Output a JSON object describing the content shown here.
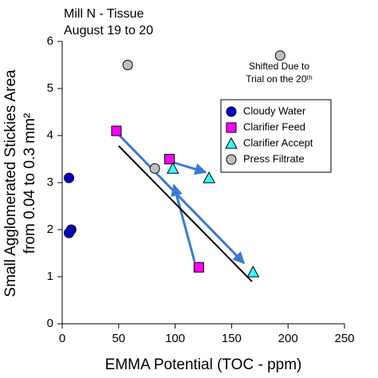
{
  "chart_data": {
    "type": "scatter",
    "title": [
      "Mill N - Tissue",
      "August 19 to 20"
    ],
    "x_label": "EMMA Potential (TOC - ppm)",
    "y_label": [
      "Small Agglomerated Stickies Area",
      "from 0.04 to 0.3 mm²"
    ],
    "annotation": [
      "Shifted Due to",
      "Trial on the 20ᵗʰ"
    ],
    "xlim": [
      0,
      250
    ],
    "xticks": [
      0,
      50,
      100,
      150,
      200,
      250
    ],
    "ylim": [
      0,
      6
    ],
    "yticks": [
      0,
      1,
      2,
      3,
      4,
      5,
      6
    ],
    "series": [
      {
        "name": "Cloudy Water",
        "color": "#0000cc",
        "marker": "circle",
        "x": [
          6,
          8,
          6
        ],
        "values": [
          3.1,
          2.0,
          1.93
        ]
      },
      {
        "name": "Clarifier Feed",
        "color": "#ff00ff",
        "marker": "square",
        "x": [
          48,
          95,
          121
        ],
        "values": [
          4.1,
          3.5,
          1.2
        ]
      },
      {
        "name": "Clarifier Accept",
        "color": "#33ffff",
        "marker": "triangle",
        "x": [
          98,
          130,
          169
        ],
        "values": [
          3.3,
          3.1,
          1.1
        ]
      },
      {
        "name": "Press Filtrate",
        "color": "#c0c0c0",
        "marker": "circle",
        "x": [
          58,
          82,
          193
        ],
        "values": [
          5.5,
          3.3,
          5.7
        ]
      }
    ],
    "trend_line": {
      "color": "#000000",
      "x": [
        50,
        168
      ],
      "values": [
        3.78,
        0.9
      ]
    }
  }
}
